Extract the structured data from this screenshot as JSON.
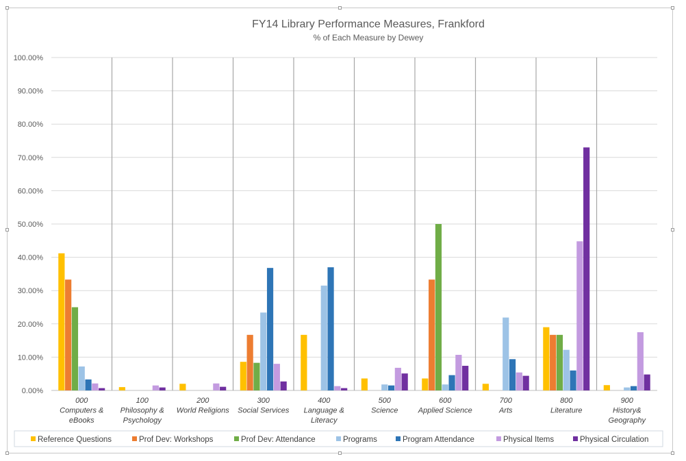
{
  "chart_data": {
    "type": "bar",
    "title": "FY14 Library Performance Measures, Frankford",
    "subtitle": "% of Each Measure by Dewey",
    "xlabel": "",
    "ylabel": "",
    "ylim": [
      0,
      100
    ],
    "yticks": [
      "0.00%",
      "10.00%",
      "20.00%",
      "30.00%",
      "40.00%",
      "50.00%",
      "60.00%",
      "70.00%",
      "80.00%",
      "90.00%",
      "100.00%"
    ],
    "grid": true,
    "legend_position": "bottom",
    "categories": [
      [
        "000",
        "Computers &",
        "eBooks"
      ],
      [
        "100",
        "Philosophy &",
        "Psychology"
      ],
      [
        "200",
        "World Religions"
      ],
      [
        "300",
        "Social Services"
      ],
      [
        "400",
        "Language &",
        "Literacy"
      ],
      [
        "500",
        "Science"
      ],
      [
        "600",
        "Applied Science"
      ],
      [
        "700",
        "Arts"
      ],
      [
        "800",
        "Literature"
      ],
      [
        "900",
        "History&",
        "Geography"
      ]
    ],
    "series": [
      {
        "name": "Reference Questions",
        "color": "#FFC000",
        "values": [
          41.2,
          1.0,
          2.0,
          8.6,
          16.7,
          3.6,
          3.6,
          2.0,
          19.0,
          1.6
        ]
      },
      {
        "name": "Prof Dev: Workshops",
        "color": "#ED7D31",
        "values": [
          33.3,
          0,
          0,
          16.7,
          0,
          0,
          33.3,
          0,
          16.7,
          0
        ]
      },
      {
        "name": "Prof Dev: Attendance",
        "color": "#70AD47",
        "values": [
          25.0,
          0,
          0,
          8.3,
          0,
          0,
          50.0,
          0,
          16.7,
          0
        ]
      },
      {
        "name": "Programs",
        "color": "#9DC3E6",
        "values": [
          7.2,
          0,
          0,
          23.4,
          31.5,
          1.8,
          1.8,
          21.9,
          12.2,
          0.9
        ]
      },
      {
        "name": "Program Attendance",
        "color": "#2E75B6",
        "values": [
          3.3,
          0,
          0,
          36.8,
          37.0,
          1.5,
          4.6,
          9.4,
          6.0,
          1.3
        ]
      },
      {
        "name": "Physical Items",
        "color": "#C39BE0",
        "values": [
          2.1,
          1.5,
          2.1,
          8.0,
          1.3,
          6.8,
          10.7,
          5.4,
          44.8,
          17.5
        ]
      },
      {
        "name": "Physical Circulation",
        "color": "#7030A0",
        "values": [
          0.7,
          0.9,
          1.1,
          2.7,
          0.7,
          5.1,
          7.4,
          4.4,
          73.0,
          4.8
        ]
      }
    ]
  }
}
